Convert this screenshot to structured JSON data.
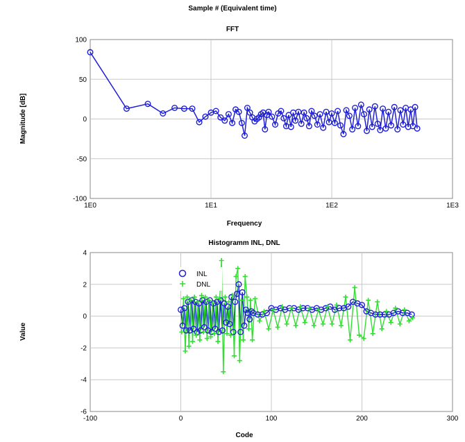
{
  "page": {
    "top_label": "Sample # (Equivalent time)"
  },
  "chart_data": [
    {
      "type": "line",
      "title": "FFT",
      "xlabel": "Frequency",
      "ylabel": "Magnitude [dB]",
      "xscale": "log",
      "xlim": [
        1,
        1000
      ],
      "ylim": [
        -100,
        100
      ],
      "grid": true,
      "legend": "none",
      "color": "#1f1fd6",
      "x_ticks": [
        {
          "value": 1,
          "label": "1E0"
        },
        {
          "value": 10,
          "label": "1E1"
        },
        {
          "value": 100,
          "label": "1E2"
        },
        {
          "value": 1000,
          "label": "1E3"
        }
      ],
      "y_ticks": [
        {
          "value": -100,
          "label": "-100"
        },
        {
          "value": -50,
          "label": "-50"
        },
        {
          "value": 0,
          "label": "0"
        },
        {
          "value": 50,
          "label": "50"
        },
        {
          "value": 100,
          "label": "100"
        }
      ],
      "series": [
        {
          "x": [
            1,
            2,
            3,
            4,
            5,
            6,
            7,
            8,
            9,
            10,
            11,
            12,
            13,
            14,
            15,
            16,
            17,
            18,
            19,
            20,
            21,
            22,
            23,
            24,
            25,
            26,
            27,
            28,
            29,
            30,
            32,
            34,
            36,
            38,
            40,
            42,
            44,
            46,
            48,
            50,
            53,
            56,
            59,
            62,
            65,
            68,
            72,
            76,
            80,
            85,
            90,
            95,
            100,
            106,
            112,
            118,
            125,
            132,
            140,
            148,
            156,
            165,
            175,
            185,
            195,
            205,
            216,
            228,
            240,
            252,
            265,
            280,
            295,
            310,
            330,
            350,
            370,
            390,
            410,
            430,
            450,
            470,
            490,
            510
          ],
          "y": [
            84,
            13,
            19,
            7,
            14,
            13,
            13,
            -4,
            3,
            8,
            10,
            2,
            -2,
            6,
            -5,
            12,
            9,
            -5,
            -21,
            14,
            8,
            2,
            -3,
            0,
            2,
            6,
            8,
            -13,
            5,
            9,
            3,
            -7,
            7,
            10,
            1,
            -9,
            5,
            -10,
            8,
            -2,
            9,
            -6,
            8,
            1,
            -9,
            10,
            4,
            -7,
            6,
            -11,
            9,
            -4,
            7,
            -5,
            10,
            -8,
            -19,
            11,
            4,
            -13,
            14,
            -9,
            18,
            6,
            -15,
            12,
            -10,
            16,
            -6,
            -14,
            13,
            -12,
            9,
            -8,
            15,
            -13,
            11,
            -7,
            14,
            -10,
            12,
            -9,
            15,
            -12
          ]
        }
      ]
    },
    {
      "type": "scatter",
      "title": "Histogramm INL, DNL",
      "xlabel": "Code",
      "ylabel": "Value",
      "xlim": [
        -100,
        300
      ],
      "ylim": [
        -6,
        4
      ],
      "grid": true,
      "legend": "top-left",
      "x_ticks": [
        {
          "value": -100,
          "label": "-100"
        },
        {
          "value": 0,
          "label": "0"
        },
        {
          "value": 100,
          "label": "100"
        },
        {
          "value": 200,
          "label": "200"
        },
        {
          "value": 300,
          "label": "300"
        }
      ],
      "y_ticks": [
        {
          "value": -6,
          "label": "-6"
        },
        {
          "value": -4,
          "label": "-4"
        },
        {
          "value": -2,
          "label": "-2"
        },
        {
          "value": 0,
          "label": "0"
        },
        {
          "value": 2,
          "label": "2"
        },
        {
          "value": 4,
          "label": "4"
        }
      ],
      "series": [
        {
          "name": "INL",
          "marker": "circle",
          "color": "#1f1fd6",
          "x": [
            0,
            2,
            4,
            6,
            8,
            10,
            12,
            14,
            16,
            18,
            20,
            22,
            24,
            26,
            28,
            30,
            32,
            34,
            36,
            38,
            40,
            42,
            44,
            46,
            48,
            50,
            52,
            54,
            56,
            58,
            60,
            62,
            64,
            66,
            68,
            70,
            72,
            74,
            76,
            78,
            80,
            85,
            90,
            95,
            100,
            105,
            110,
            115,
            120,
            125,
            130,
            135,
            140,
            145,
            150,
            155,
            160,
            165,
            170,
            175,
            180,
            185,
            190,
            195,
            200,
            205,
            210,
            215,
            220,
            225,
            230,
            235,
            240,
            245,
            250,
            255
          ],
          "y": [
            0.4,
            -0.6,
            0.5,
            -0.9,
            0.9,
            -0.9,
            1,
            -0.8,
            0.9,
            -1,
            0.8,
            -0.9,
            1,
            -0.7,
            0.9,
            -0.9,
            1,
            -1,
            0.8,
            -0.8,
            0.9,
            -1,
            1,
            -0.9,
            0.8,
            -0.4,
            0.6,
            -0.5,
            1.2,
            -1,
            0.9,
            1.4,
            2,
            -1,
            1.5,
            -0.6,
            0.4,
            0.2,
            -0.2,
            0.3,
            0.2,
            0.1,
            0.1,
            0.2,
            0.5,
            0.4,
            0.5,
            0.4,
            0.5,
            0.5,
            0.4,
            0.5,
            0.5,
            0.4,
            0.5,
            0.4,
            0.5,
            0.6,
            0.4,
            0.5,
            0.5,
            0.6,
            0.9,
            0.8,
            0.7,
            0.3,
            0.2,
            0.1,
            0.1,
            0.1,
            0.1,
            0.2,
            0.3,
            0.2,
            0.2,
            0.1
          ]
        },
        {
          "name": "DNL",
          "marker": "plus",
          "color": "#33dd33",
          "x": [
            1,
            3,
            5,
            7,
            9,
            11,
            13,
            15,
            17,
            19,
            21,
            23,
            25,
            27,
            29,
            31,
            33,
            35,
            37,
            39,
            41,
            43,
            45,
            47,
            49,
            51,
            53,
            55,
            57,
            59,
            61,
            63,
            65,
            67,
            69,
            71,
            73,
            75,
            77,
            79,
            82,
            87,
            92,
            97,
            102,
            107,
            112,
            117,
            122,
            127,
            132,
            137,
            142,
            147,
            152,
            157,
            162,
            167,
            172,
            177,
            182,
            187,
            192,
            197,
            202,
            207,
            212,
            217,
            222,
            227,
            232,
            237,
            242,
            247,
            252,
            256
          ],
          "y": [
            -1,
            1.1,
            -2.2,
            1.2,
            -1.9,
            1,
            -1.6,
            1.2,
            -1.2,
            0.9,
            -1.5,
            1.3,
            -1,
            1.2,
            -1.4,
            1,
            -1.3,
            0.8,
            -1.1,
            1.2,
            -1.6,
            1.1,
            3.5,
            -3.5,
            1.2,
            -1.1,
            0.9,
            -1.2,
            1.3,
            -2.5,
            2.5,
            3,
            -2.8,
            1,
            -1.5,
            2.5,
            1.2,
            -0.8,
            1,
            -1.5,
            1.1,
            -0.3,
            0.3,
            -0.8,
            0.4,
            -0.7,
            0.6,
            -0.5,
            0.5,
            -0.6,
            0.6,
            -0.4,
            0.5,
            -0.6,
            0.4,
            -0.5,
            0.6,
            -0.5,
            0.7,
            -0.6,
            1.2,
            -1.5,
            1.8,
            -1.2,
            -1.4,
            1,
            -1.1,
            0.9,
            -0.8,
            0.3,
            -0.4,
            0.5,
            -0.5,
            0.4,
            -0.3,
            -0.1
          ]
        }
      ]
    }
  ]
}
